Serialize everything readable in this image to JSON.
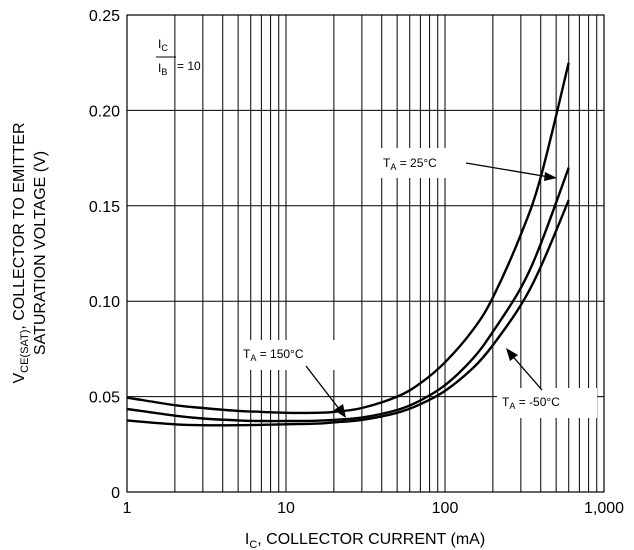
{
  "chart_data": {
    "type": "line",
    "title": "",
    "xlabel_main": "I",
    "xlabel_sub": "C",
    "xlabel_rest": ", COLLECTOR CURRENT (mA)",
    "ylabel_line1_main": "V",
    "ylabel_line1_sub": "CE(SAT)",
    "ylabel_line1_rest": ", COLLECTOR TO EMITTER",
    "ylabel_line2": "SATURATION VOLTAGE (V)",
    "xscale": "log",
    "xlim": [
      1,
      1000
    ],
    "ylim": [
      0,
      0.25
    ],
    "x_ticks": [
      "1",
      "10",
      "100",
      "1,000"
    ],
    "y_ticks": [
      "0",
      "0.05",
      "0.10",
      "0.15",
      "0.20",
      "0.25"
    ],
    "grid": true,
    "ratio_label": {
      "num_main": "I",
      "num_sub": "C",
      "den_main": "I",
      "den_sub": "B",
      "value": "= 10"
    },
    "series": [
      {
        "name": "T_A = 150°C",
        "label_main": "T",
        "label_sub": "A",
        "label_rest": " = 150°C",
        "x": [
          1,
          2,
          3,
          5,
          7,
          10,
          15,
          20,
          30,
          50,
          70,
          100,
          150,
          200,
          300,
          400,
          600
        ],
        "y": [
          0.0495,
          0.0455,
          0.044,
          0.0425,
          0.042,
          0.0415,
          0.0415,
          0.042,
          0.044,
          0.05,
          0.057,
          0.068,
          0.085,
          0.102,
          0.135,
          0.165,
          0.225
        ]
      },
      {
        "name": "T_A = 25°C",
        "label_main": "T",
        "label_sub": "A",
        "label_rest": " = 25°C",
        "x": [
          1,
          2,
          3,
          5,
          7,
          10,
          15,
          20,
          30,
          50,
          70,
          100,
          150,
          200,
          300,
          400,
          600
        ],
        "y": [
          0.0435,
          0.04,
          0.0385,
          0.0375,
          0.0372,
          0.0372,
          0.0373,
          0.0378,
          0.039,
          0.043,
          0.048,
          0.056,
          0.07,
          0.084,
          0.107,
          0.13,
          0.17
        ]
      },
      {
        "name": "T_A = -50°C",
        "label_main": "T",
        "label_sub": "A",
        "label_rest": " = -50°C",
        "x": [
          1,
          2,
          3,
          5,
          7,
          10,
          15,
          20,
          30,
          50,
          70,
          100,
          150,
          200,
          300,
          400,
          600
        ],
        "y": [
          0.0375,
          0.0355,
          0.035,
          0.035,
          0.0352,
          0.0355,
          0.0358,
          0.0365,
          0.0378,
          0.0415,
          0.046,
          0.053,
          0.065,
          0.077,
          0.098,
          0.118,
          0.153
        ]
      }
    ]
  }
}
